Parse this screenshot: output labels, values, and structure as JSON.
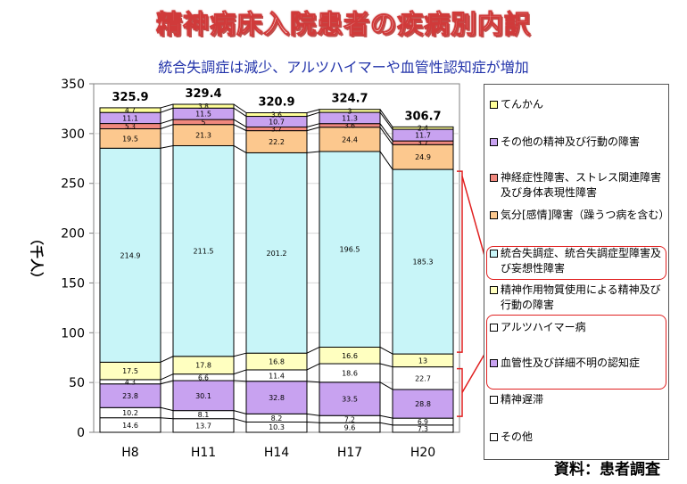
{
  "title": "精神病床入院患者の疾病別内訳",
  "subtitle": "統合失調症は減少、アルツハイマーや血管性認知症が増加",
  "source": "資料：患者調査",
  "chart_data": {
    "type": "bar",
    "stacked": true,
    "categories": [
      "H8",
      "H11",
      "H14",
      "H17",
      "H20"
    ],
    "ylabel": "（千人）",
    "ylim": [
      0,
      350
    ],
    "yticks": [
      0,
      50,
      100,
      150,
      200,
      250,
      300,
      350
    ],
    "totals": [
      "325.9",
      "329.4",
      "320.9",
      "324.7",
      "306.7"
    ],
    "series": [
      {
        "name": "その他",
        "color": "#ffffff",
        "values": [
          14.6,
          13.7,
          10.3,
          9.6,
          7.3
        ]
      },
      {
        "name": "精神遅滞",
        "color": "#ffffff",
        "values": [
          10.2,
          8.1,
          8.2,
          7.2,
          6.9
        ]
      },
      {
        "name": "血管性及び詳細不明の認知症",
        "color": "#c8a2f0",
        "values": [
          23.8,
          30.1,
          32.8,
          33.5,
          28.8
        ]
      },
      {
        "name": "アルツハイマー病",
        "color": "#ffffff",
        "values": [
          4.3,
          6.6,
          11.4,
          18.6,
          22.7
        ]
      },
      {
        "name": "精神作用物質使用による精神及び行動の障害",
        "color": "#ffffc0",
        "values": [
          17.5,
          17.8,
          16.8,
          16.6,
          13
        ]
      },
      {
        "name": "統合失調症、統合失調症型障害及び妄想性障害",
        "color": "#c8f5f8",
        "values": [
          214.9,
          211.5,
          201.2,
          196.5,
          185.3
        ]
      },
      {
        "name": "気分[感情]障害（躁うつ病を含む）",
        "color": "#fcc88e",
        "values": [
          19.5,
          21.3,
          22.2,
          24.4,
          24.9
        ]
      },
      {
        "name": "神経症性障害、ストレス関連障害及び身体表現性障害",
        "color": "#f0887e",
        "values": [
          5.3,
          5,
          3.7,
          3.6,
          3.7
        ]
      },
      {
        "name": "その他の精神及び行動の障害",
        "color": "#c8a2f0",
        "values": [
          11.1,
          11.5,
          10.7,
          11.3,
          11.7
        ]
      },
      {
        "name": "てんかん",
        "color": "#ffff99",
        "values": [
          4.7,
          3.8,
          3.6,
          3,
          2.4
        ]
      }
    ]
  },
  "legend": {
    "items": [
      {
        "label": "てんかん",
        "color": "#ffff99"
      },
      {
        "label": "その他の精神及び行動の障害",
        "color": "#c8a2f0"
      },
      {
        "label": "神経症性障害、ストレス関連障害及び身体表現性障害",
        "color": "#f0887e"
      },
      {
        "label": "気分[感情]障害（躁うつ病を含む）",
        "color": "#fcc88e"
      },
      {
        "label": "統合失調症、統合失調症型障害及び妄想性障害",
        "color": "#c8f5f8"
      },
      {
        "label": "精神作用物質使用による精神及び行動の障害",
        "color": "#ffffc0"
      },
      {
        "label": "アルツハイマー病",
        "color": "#ffffff"
      },
      {
        "label": "血管性及び詳細不明の認知症",
        "color": "#c8a2f0"
      },
      {
        "label": "精神遅滞",
        "color": "#ffffff"
      },
      {
        "label": "その他",
        "color": "#ffffff"
      }
    ]
  }
}
